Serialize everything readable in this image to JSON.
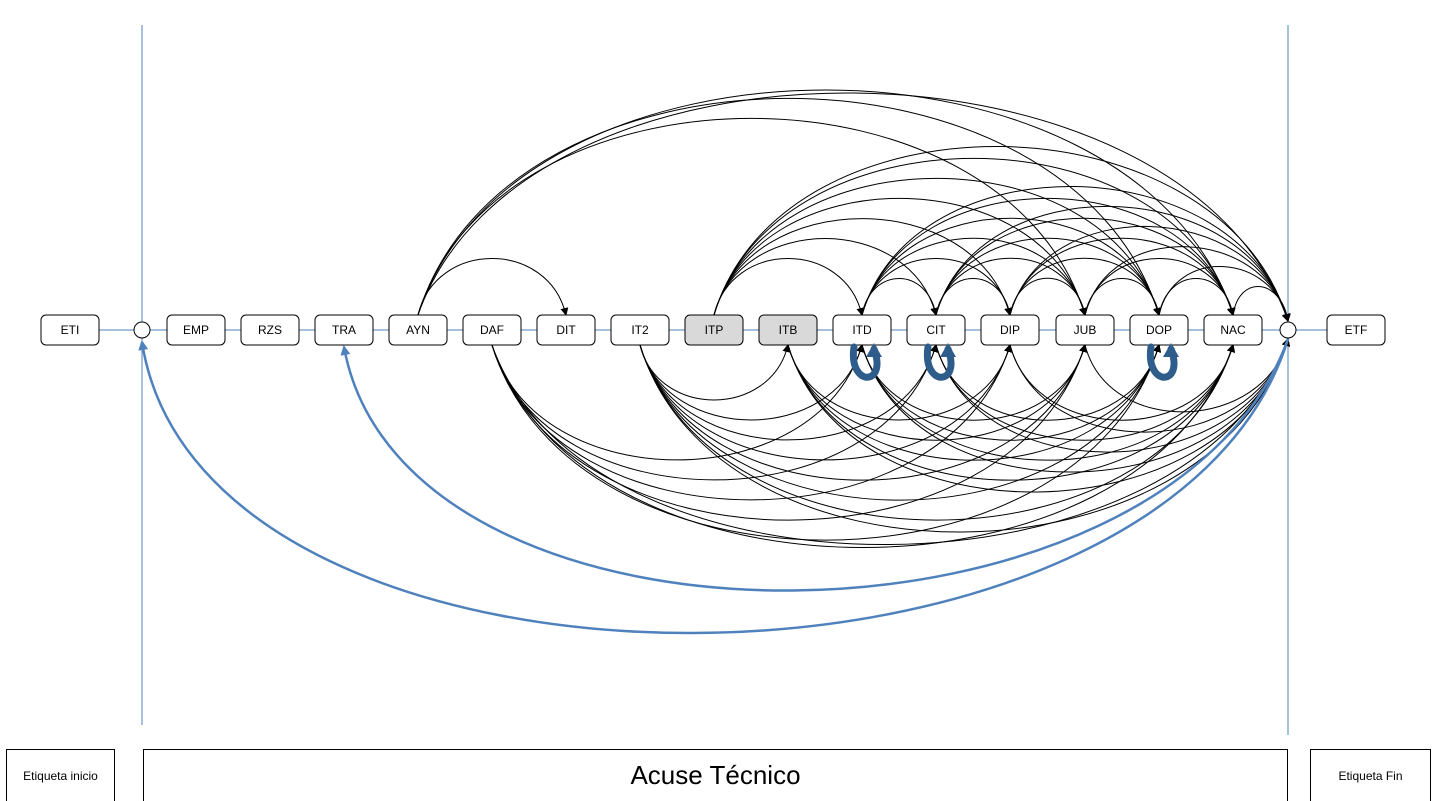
{
  "diagram": {
    "nodes": [
      {
        "id": "ETI",
        "label": "ETI",
        "shaded": false
      },
      {
        "id": "EMP",
        "label": "EMP",
        "shaded": false
      },
      {
        "id": "RZS",
        "label": "RZS",
        "shaded": false
      },
      {
        "id": "TRA",
        "label": "TRA",
        "shaded": false
      },
      {
        "id": "AYN",
        "label": "AYN",
        "shaded": false
      },
      {
        "id": "DAF",
        "label": "DAF",
        "shaded": false
      },
      {
        "id": "DIT",
        "label": "DIT",
        "shaded": false
      },
      {
        "id": "IT2",
        "label": "IT2",
        "shaded": false
      },
      {
        "id": "ITP",
        "label": "ITP",
        "shaded": true
      },
      {
        "id": "ITB",
        "label": "ITB",
        "shaded": true
      },
      {
        "id": "ITD",
        "label": "ITD",
        "shaded": false
      },
      {
        "id": "CIT",
        "label": "CIT",
        "shaded": false
      },
      {
        "id": "DIP",
        "label": "DIP",
        "shaded": false
      },
      {
        "id": "JUB",
        "label": "JUB",
        "shaded": false
      },
      {
        "id": "DOP",
        "label": "DOP",
        "shaded": false
      },
      {
        "id": "NAC",
        "label": "NAC",
        "shaded": false
      },
      {
        "id": "ETF",
        "label": "ETF",
        "shaded": false
      }
    ],
    "junctions": [
      "J1",
      "J2"
    ],
    "colors": {
      "shaded_fill": "#d9d9d9",
      "line_blue": "#4f81bd",
      "loop_blue": "#2e5d8c",
      "edge": "#000000"
    },
    "arcs_above": [
      [
        "AYN",
        "DIT"
      ],
      [
        "AYN",
        "JUB"
      ],
      [
        "AYN",
        "DOP"
      ],
      [
        "AYN",
        "NAC"
      ],
      [
        "AYN",
        "J2"
      ],
      [
        "ITP",
        "ITD"
      ],
      [
        "ITP",
        "CIT"
      ],
      [
        "ITP",
        "DIP"
      ],
      [
        "ITP",
        "JUB"
      ],
      [
        "ITP",
        "DOP"
      ],
      [
        "ITP",
        "NAC"
      ],
      [
        "ITP",
        "J2"
      ],
      [
        "ITD",
        "CIT"
      ],
      [
        "ITD",
        "DIP"
      ],
      [
        "ITD",
        "JUB"
      ],
      [
        "ITD",
        "DOP"
      ],
      [
        "ITD",
        "NAC"
      ],
      [
        "ITD",
        "J2"
      ],
      [
        "CIT",
        "DIP"
      ],
      [
        "CIT",
        "JUB"
      ],
      [
        "CIT",
        "DOP"
      ],
      [
        "CIT",
        "NAC"
      ],
      [
        "CIT",
        "J2"
      ],
      [
        "DIP",
        "JUB"
      ],
      [
        "DIP",
        "DOP"
      ],
      [
        "DIP",
        "NAC"
      ],
      [
        "DIP",
        "J2"
      ],
      [
        "JUB",
        "DOP"
      ],
      [
        "JUB",
        "NAC"
      ],
      [
        "JUB",
        "J2"
      ],
      [
        "DOP",
        "NAC"
      ],
      [
        "DOP",
        "J2"
      ],
      [
        "NAC",
        "J2"
      ]
    ],
    "arcs_below": [
      [
        "DAF",
        "ITD"
      ],
      [
        "DAF",
        "CIT"
      ],
      [
        "DAF",
        "DIP"
      ],
      [
        "DAF",
        "JUB"
      ],
      [
        "DAF",
        "DOP"
      ],
      [
        "DAF",
        "NAC"
      ],
      [
        "DAF",
        "J2"
      ],
      [
        "IT2",
        "ITB"
      ],
      [
        "IT2",
        "ITD"
      ],
      [
        "IT2",
        "CIT"
      ],
      [
        "IT2",
        "DIP"
      ],
      [
        "IT2",
        "JUB"
      ],
      [
        "IT2",
        "DOP"
      ],
      [
        "IT2",
        "NAC"
      ],
      [
        "IT2",
        "J2"
      ],
      [
        "ITB",
        "DIP"
      ],
      [
        "ITB",
        "JUB"
      ],
      [
        "ITB",
        "DOP"
      ],
      [
        "ITB",
        "NAC"
      ],
      [
        "ITB",
        "J2"
      ],
      [
        "ITD",
        "JUB"
      ],
      [
        "ITD",
        "DOP"
      ],
      [
        "ITD",
        "NAC"
      ],
      [
        "ITD",
        "J2"
      ],
      [
        "CIT",
        "DOP"
      ],
      [
        "CIT",
        "NAC"
      ],
      [
        "CIT",
        "J2"
      ],
      [
        "DIP",
        "NAC"
      ],
      [
        "DIP",
        "J2"
      ],
      [
        "JUB",
        "J2"
      ]
    ],
    "self_loops": [
      "ITD",
      "CIT",
      "DOP"
    ],
    "return_arcs": [
      [
        "J2",
        "J1"
      ],
      [
        "J2",
        "TRA"
      ]
    ]
  },
  "footer": {
    "start_label": "Etiqueta inicio",
    "title": "Acuse Técnico",
    "end_label": "Etiqueta Fin"
  }
}
